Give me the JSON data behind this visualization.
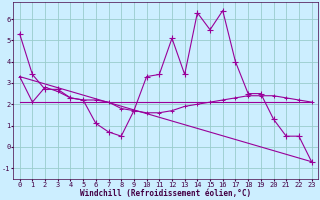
{
  "bg_color": "#cceeff",
  "line_color": "#990099",
  "grid_color": "#99cccc",
  "xlabel": "Windchill (Refroidissement éolien,°C)",
  "ylim": [
    -1.5,
    6.8
  ],
  "xlim": [
    -0.5,
    23.5
  ],
  "yticks": [
    -1,
    0,
    1,
    2,
    3,
    4,
    5,
    6
  ],
  "xticks": [
    0,
    1,
    2,
    3,
    4,
    5,
    6,
    7,
    8,
    9,
    10,
    11,
    12,
    13,
    14,
    15,
    16,
    17,
    18,
    19,
    20,
    21,
    22,
    23
  ],
  "series1_x": [
    0,
    1,
    2,
    3,
    4,
    5,
    6,
    7,
    8,
    9,
    10,
    11,
    12,
    13,
    14,
    15,
    16,
    17,
    18,
    19,
    20,
    21,
    22,
    23
  ],
  "series1_y": [
    5.3,
    3.4,
    2.7,
    2.7,
    2.3,
    2.2,
    1.1,
    0.7,
    0.5,
    1.7,
    3.3,
    3.4,
    5.1,
    3.4,
    6.3,
    5.5,
    6.4,
    4.0,
    2.5,
    2.5,
    1.3,
    0.5,
    0.5,
    -0.7
  ],
  "series2_x": [
    0,
    1,
    2,
    3,
    4,
    5,
    6,
    7,
    8,
    9,
    10,
    11,
    12,
    13,
    14,
    15,
    16,
    17,
    18,
    19,
    20,
    21,
    22,
    23
  ],
  "series2_y": [
    3.3,
    2.1,
    2.8,
    2.6,
    2.3,
    2.2,
    2.2,
    2.1,
    1.8,
    1.7,
    1.6,
    1.6,
    1.7,
    1.9,
    2.0,
    2.1,
    2.2,
    2.3,
    2.4,
    2.4,
    2.4,
    2.3,
    2.2,
    2.1
  ],
  "series3_x": [
    0,
    23
  ],
  "series3_y": [
    3.3,
    -0.7
  ],
  "series4_x": [
    0,
    23
  ],
  "series4_y": [
    2.1,
    2.1
  ],
  "title_color": "#440044",
  "xlabel_fontsize": 5.5,
  "tick_fontsize": 5.0
}
